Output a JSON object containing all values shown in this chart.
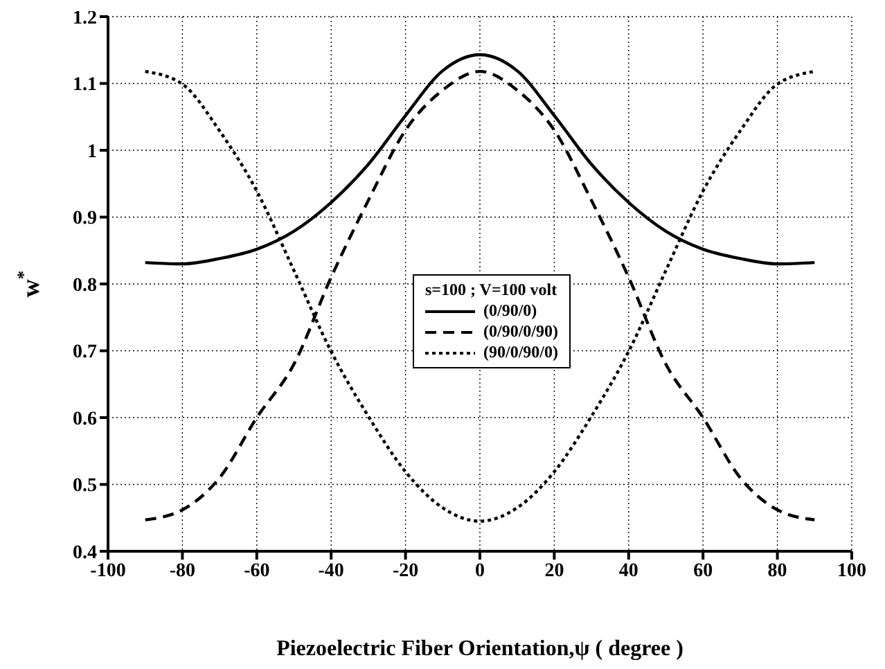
{
  "chart_data": {
    "type": "line",
    "xlabel": "Piezoelectric Fiber Orientation,ψ ( degree )",
    "ylabel": "w$^{*}$",
    "legend_title": "s=100 ; V=100 volt",
    "x": [
      -90,
      -80,
      -70,
      -60,
      -50,
      -40,
      -30,
      -20,
      -10,
      0,
      10,
      20,
      30,
      40,
      50,
      60,
      70,
      80,
      90
    ],
    "series": [
      {
        "name": "(0/90/0)",
        "color": "#000000",
        "line_style": "solid",
        "values": [
          0.832,
          0.83,
          0.838,
          0.852,
          0.879,
          0.922,
          0.979,
          1.052,
          1.119,
          1.143,
          1.119,
          1.052,
          0.979,
          0.922,
          0.879,
          0.852,
          0.838,
          0.83,
          0.832
        ]
      },
      {
        "name": "(0/90/0/90)",
        "color": "#000000",
        "line_style": "dashed",
        "values": [
          0.447,
          0.462,
          0.51,
          0.6,
          0.68,
          0.81,
          0.925,
          1.03,
          1.09,
          1.118,
          1.09,
          1.03,
          0.925,
          0.81,
          0.68,
          0.6,
          0.51,
          0.462,
          0.447
        ]
      },
      {
        "name": "(90/0/90/0)",
        "color": "#000000",
        "line_style": "dotted",
        "values": [
          1.118,
          1.099,
          1.029,
          0.939,
          0.82,
          0.699,
          0.602,
          0.519,
          0.465,
          0.445,
          0.465,
          0.519,
          0.602,
          0.699,
          0.82,
          0.939,
          1.029,
          1.099,
          1.118
        ]
      }
    ],
    "xlim": [
      -100,
      100
    ],
    "xticks": [
      -100,
      -80,
      -60,
      -40,
      -20,
      0,
      20,
      40,
      60,
      80,
      100
    ],
    "ylim": [
      0.4,
      1.2
    ],
    "yticks": [
      0.4,
      0.5,
      0.6,
      0.7,
      0.8,
      0.9,
      1,
      1.1,
      1.2
    ],
    "grid": true,
    "legend": "right",
    "marker": "none"
  }
}
